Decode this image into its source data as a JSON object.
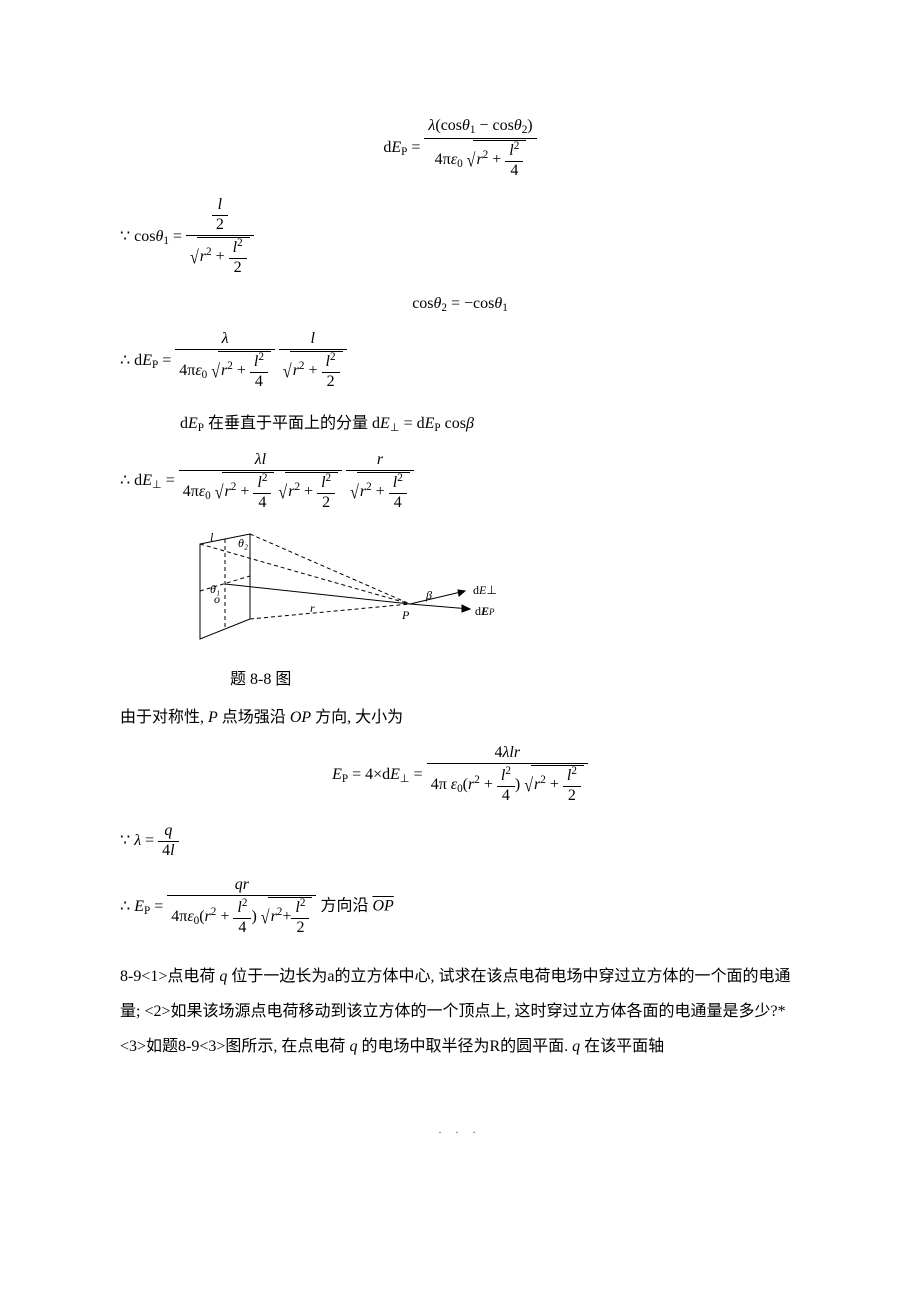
{
  "eq1": {
    "lhs": "d<span class='it'>E</span><sub>P</sub> =",
    "num": "<span class='it'>λ</span>(cos<span class='it'>θ</span><sub>1</sub> − cos<span class='it'>θ</span><sub>2</sub>)",
    "den_lead": "4π<span class='it'>ε</span><sub>0</sub>",
    "den_rad": "<span class='it'>r</span><sup>2</sup> + <span class='frac'><span class='num'><span class='it'>l</span><sup>2</sup></span><span class='den'>4</span></span>"
  },
  "eq2": {
    "lead": "∵ cos<span class='it'>θ</span><sub>1</sub> =",
    "num": "<span class='frac'><span class='num'><span class='it'>l</span></span><span class='den'>2</span></span>",
    "den_rad": "<span class='it'>r</span><sup>2</sup> + <span class='frac'><span class='num'><span class='it'>l</span><sup>2</sup></span><span class='den'>2</span></span>"
  },
  "eq3": "cos<span class='it'>θ</span><sub>2</sub> = −cos<span class='it'>θ</span><sub>1</sub>",
  "eq4": {
    "lead": "∴ d<span class='it'>E</span><sub>P</sub> =",
    "f1_num": "<span class='it'>λ</span>",
    "f1_den_lead": "4π<span class='it'>ε</span><sub>0</sub>",
    "f1_den_rad": "<span class='it'>r</span><sup>2</sup> + <span class='frac'><span class='num'><span class='it'>l</span><sup>2</sup></span><span class='den'>4</span></span>",
    "f2_num": "<span class='it'>l</span>",
    "f2_den_rad": "<span class='it'>r</span><sup>2</sup> + <span class='frac'><span class='num'><span class='it'>l</span><sup>2</sup></span><span class='den'>2</span></span>"
  },
  "line_dEp_perp": "d<span class='it'>E</span><sub>P</sub> 在垂直于平面上的分量 d<span class='it'>E</span><sub>⊥</sub> = d<span class='it'>E</span><sub>P</sub> cos<span class='it'>β</span>",
  "eq5": {
    "lead": "∴ d<span class='it'>E</span><sub>⊥</sub> =",
    "num": "<span class='it'>λl</span>",
    "d1_lead": "4π<span class='it'>ε</span><sub>0</sub>",
    "d1_rad": "<span class='it'>r</span><sup>2</sup> + <span class='frac'><span class='num'><span class='it'>l</span><sup>2</sup></span><span class='den'>4</span></span>",
    "d2_rad": "<span class='it'>r</span><sup>2</sup> + <span class='frac'><span class='num'><span class='it'>l</span><sup>2</sup></span><span class='den'>2</span></span>",
    "f2_num": "<span class='it'>r</span>",
    "f2_rad": "<span class='it'>r</span><sup>2</sup> + <span class='frac'><span class='num'><span class='it'>l</span><sup>2</sup></span><span class='den'>4</span></span>"
  },
  "diagram": {
    "labels": {
      "l": "l",
      "theta1": "θ₁",
      "theta2": "θ₂",
      "o": "o",
      "r": "r",
      "P": "P",
      "beta": "β",
      "dEperp": "dE⊥",
      "dEp": "dE_P"
    },
    "stroke": "#000",
    "fill": "#fff",
    "dash": "4,3"
  },
  "caption88": "题 8-8 图",
  "sym_line": "由于对称性, <span class='it'>P</span> 点场强沿 <span class='it'>OP</span> 方向, 大小为",
  "eq6": {
    "lhs": "<span class='it'>E</span><sub>P</sub> = 4×d<span class='it'>E</span><sub>⊥</sub> =",
    "num": "4<span class='it'>λlr</span>",
    "den_lead": "4π&nbsp;<span class='it'>ε</span><sub>0</sub>(<span class='it'>r</span><sup>2</sup> + <span class='frac'><span class='num'><span class='it'>l</span><sup>2</sup></span><span class='den'>4</span></span>)",
    "den_rad": "<span class='it'>r</span><sup>2</sup> + <span class='frac'><span class='num'><span class='it'>l</span><sup>2</sup></span><span class='den'>2</span></span>"
  },
  "eq7": {
    "lead": "∵ <span class='it'>λ</span> =",
    "num": "<span class='it'>q</span>",
    "den": "4<span class='it'>l</span>"
  },
  "eq8": {
    "lead": "∴ <span class='it'>E</span><sub>P</sub> =",
    "num": "<span class='it'>qr</span>",
    "den_lead": "4π<span class='it'>ε</span><sub>0</sub>(<span class='it'>r</span><sup>2</sup> + <span class='frac'><span class='num'><span class='it'>l</span><sup>2</sup></span><span class='den'>4</span></span>)",
    "den_rad": "<span class='it'>r</span><sup>2</sup>+<span class='frac'><span class='num'><span class='it'>l</span><sup>2</sup></span><span class='den'>2</span></span>",
    "trail": " 方向沿 <span class='vec-over'><span class='it'>OP</span></span>"
  },
  "problem89": "8-9&lt;1&gt;点电荷 <span class='it'>q</span> 位于一边长为a的立方体中心, 试求在该点电荷电场中穿过立方体的一个面的电通量; &lt;2&gt;如果该场源点电荷移动到该立方体的一个顶点上, 这时穿过立方体各面的电通量是多少?*&lt;3&gt;如题8-9&lt;3&gt;图所示, 在点电荷 <span class='it'>q</span> 的电场中取半径为R的圆平面.  <span class='it'>q</span> 在该平面轴",
  "footer": ". . ."
}
